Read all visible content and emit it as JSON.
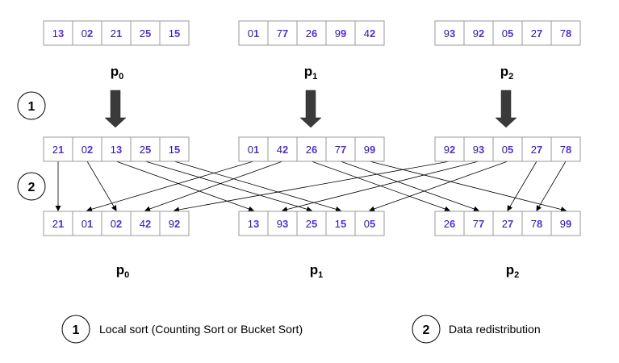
{
  "colors": {
    "tens_digit": "#2b1a8c",
    "units_digit": "#5a2be0",
    "block_arrow": "#3a3a3a"
  },
  "rows": {
    "initial": [
      [
        "13",
        "02",
        "21",
        "25",
        "15"
      ],
      [
        "01",
        "77",
        "26",
        "99",
        "42"
      ],
      [
        "93",
        "92",
        "05",
        "27",
        "78"
      ]
    ],
    "sorted": [
      [
        "21",
        "02",
        "13",
        "25",
        "15"
      ],
      [
        "01",
        "42",
        "26",
        "77",
        "99"
      ],
      [
        "92",
        "93",
        "05",
        "27",
        "78"
      ]
    ],
    "redistributed": [
      [
        "21",
        "01",
        "02",
        "42",
        "92"
      ],
      [
        "13",
        "93",
        "25",
        "15",
        "05"
      ],
      [
        "26",
        "77",
        "27",
        "78",
        "99"
      ]
    ]
  },
  "processors": {
    "top": [
      {
        "main": "p",
        "sub": "0"
      },
      {
        "main": "p",
        "sub": "1"
      },
      {
        "main": "p",
        "sub": "2"
      }
    ],
    "bottom": [
      {
        "main": "p",
        "sub": "0"
      },
      {
        "main": "p",
        "sub": "1"
      },
      {
        "main": "p",
        "sub": "2"
      }
    ]
  },
  "steps": [
    {
      "number": "1"
    },
    {
      "number": "2"
    }
  ],
  "legend": [
    {
      "number": "1",
      "text": "Local sort (Counting Sort or Bucket Sort)"
    },
    {
      "number": "2",
      "text": "Data redistribution"
    }
  ],
  "redistribution_links": [
    {
      "from": [
        0,
        0
      ],
      "to": [
        0,
        0
      ]
    },
    {
      "from": [
        0,
        1
      ],
      "to": [
        0,
        2
      ]
    },
    {
      "from": [
        0,
        2
      ],
      "to": [
        1,
        0
      ]
    },
    {
      "from": [
        0,
        3
      ],
      "to": [
        1,
        2
      ]
    },
    {
      "from": [
        0,
        4
      ],
      "to": [
        1,
        3
      ]
    },
    {
      "from": [
        1,
        0
      ],
      "to": [
        0,
        1
      ]
    },
    {
      "from": [
        1,
        1
      ],
      "to": [
        0,
        3
      ]
    },
    {
      "from": [
        1,
        2
      ],
      "to": [
        2,
        0
      ]
    },
    {
      "from": [
        1,
        3
      ],
      "to": [
        2,
        1
      ]
    },
    {
      "from": [
        1,
        4
      ],
      "to": [
        2,
        4
      ]
    },
    {
      "from": [
        2,
        0
      ],
      "to": [
        0,
        4
      ]
    },
    {
      "from": [
        2,
        1
      ],
      "to": [
        1,
        1
      ]
    },
    {
      "from": [
        2,
        2
      ],
      "to": [
        1,
        4
      ]
    },
    {
      "from": [
        2,
        3
      ],
      "to": [
        2,
        2
      ]
    },
    {
      "from": [
        2,
        4
      ],
      "to": [
        2,
        3
      ]
    }
  ]
}
